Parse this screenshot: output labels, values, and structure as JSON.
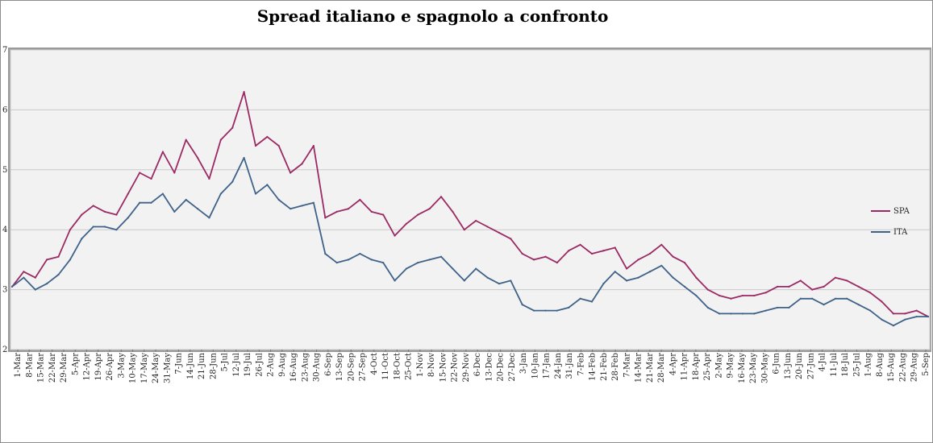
{
  "chart_data": {
    "type": "line",
    "title": "Spread italiano e spagnolo a confronto",
    "xlabel": "",
    "ylabel": "",
    "ylim": [
      2,
      7
    ],
    "yticks": [
      "2",
      "3",
      "4",
      "5",
      "6",
      "7"
    ],
    "grid": "horizontal",
    "legend_position": "right",
    "x_tick_labels": [
      "1-Mar",
      "8-Mar",
      "15-Mar",
      "22-Mar",
      "29-Mar",
      "5-Apr",
      "12-Apr",
      "19-Apr",
      "26-Apr",
      "3-May",
      "10-May",
      "17-May",
      "24-May",
      "31-May",
      "7-Jun",
      "14-Jun",
      "21-Jun",
      "28-Jun",
      "5-Jul",
      "12-Jul",
      "19-Jul",
      "26-Jul",
      "2-Aug",
      "9-Aug",
      "16-Aug",
      "23-Aug",
      "30-Aug",
      "6-Sep",
      "13-Sep",
      "20-Sep",
      "27-Sep",
      "4-Oct",
      "11-Oct",
      "18-Oct",
      "25-Oct",
      "1-Nov",
      "8-Nov",
      "15-Nov",
      "22-Nov",
      "29-Nov",
      "6-Dec",
      "13-Dec",
      "20-Dec",
      "27-Dec",
      "3-Jan",
      "10-Jan",
      "17-Jan",
      "24-Jan",
      "31-Jan",
      "7-Feb",
      "14-Feb",
      "21-Feb",
      "28-Feb",
      "7-Mar",
      "14-Mar",
      "21-Mar",
      "28-Mar",
      "4-Apr",
      "11-Apr",
      "18-Apr",
      "25-Apr",
      "2-May",
      "9-May",
      "16-May",
      "23-May",
      "30-May",
      "6-Jun",
      "13-Jun",
      "20-Jun",
      "27-Jun",
      "4-Jul",
      "11-Jul",
      "18-Jul",
      "25-Jul",
      "1-Aug",
      "8-Aug",
      "15-Aug",
      "22-Aug",
      "29-Aug",
      "5-Sep"
    ],
    "series": [
      {
        "name": "SPA",
        "color": "#9b2a64",
        "values": [
          3.05,
          3.3,
          3.2,
          3.5,
          3.55,
          4.0,
          4.25,
          4.4,
          4.3,
          4.25,
          4.6,
          4.95,
          4.85,
          5.3,
          4.95,
          5.5,
          5.2,
          4.85,
          5.5,
          5.7,
          6.3,
          5.4,
          5.55,
          5.4,
          4.95,
          5.1,
          5.4,
          4.2,
          4.3,
          4.35,
          4.5,
          4.3,
          4.25,
          3.9,
          4.1,
          4.25,
          4.35,
          4.55,
          4.3,
          4.0,
          4.15,
          4.05,
          3.95,
          3.85,
          3.6,
          3.5,
          3.55,
          3.45,
          3.65,
          3.75,
          3.6,
          3.65,
          3.7,
          3.35,
          3.5,
          3.6,
          3.75,
          3.55,
          3.45,
          3.2,
          3.0,
          2.9,
          2.85,
          2.9,
          2.9,
          2.95,
          3.05,
          3.05,
          3.15,
          3.0,
          3.05,
          3.2,
          3.15,
          3.05,
          2.95,
          2.8,
          2.6,
          2.6,
          2.65,
          2.55
        ]
      },
      {
        "name": "ITA",
        "color": "#3f6288",
        "values": [
          3.05,
          3.2,
          3.0,
          3.1,
          3.25,
          3.5,
          3.85,
          4.05,
          4.05,
          4.0,
          4.2,
          4.45,
          4.45,
          4.6,
          4.3,
          4.5,
          4.35,
          4.2,
          4.6,
          4.8,
          5.2,
          4.6,
          4.75,
          4.5,
          4.35,
          4.4,
          4.45,
          3.6,
          3.45,
          3.5,
          3.6,
          3.5,
          3.45,
          3.15,
          3.35,
          3.45,
          3.5,
          3.55,
          3.35,
          3.15,
          3.35,
          3.2,
          3.1,
          3.15,
          2.75,
          2.65,
          2.65,
          2.65,
          2.7,
          2.85,
          2.8,
          3.1,
          3.3,
          3.15,
          3.2,
          3.3,
          3.4,
          3.2,
          3.05,
          2.9,
          2.7,
          2.6,
          2.6,
          2.6,
          2.6,
          2.65,
          2.7,
          2.7,
          2.85,
          2.85,
          2.75,
          2.85,
          2.85,
          2.75,
          2.65,
          2.5,
          2.4,
          2.5,
          2.55,
          2.55
        ]
      }
    ]
  }
}
